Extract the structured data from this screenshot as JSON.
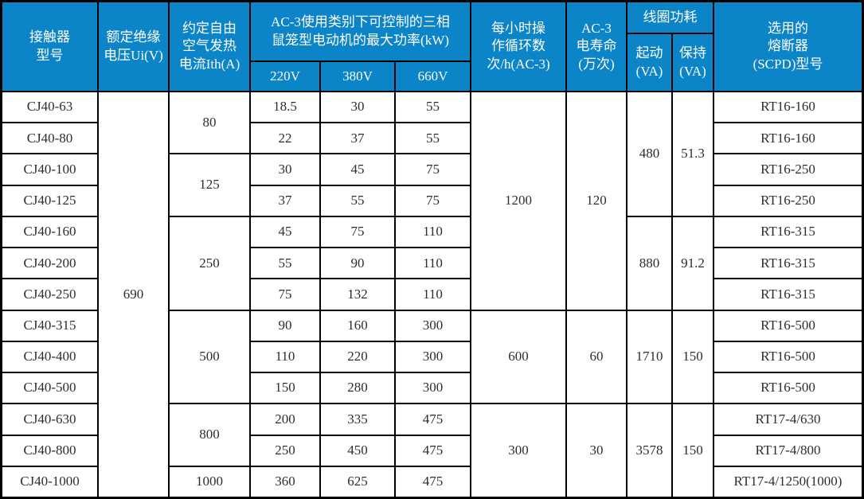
{
  "palette": {
    "header_bg": "#0b84c8",
    "grid_line": "#000000",
    "body_bg": "#ffffff",
    "header_text": "#ffffff",
    "body_text": "#2e2e2e"
  },
  "cells": [
    {
      "n": "header-contactor-model",
      "r": 1,
      "c": 1,
      "rs": 3,
      "h": 1,
      "t": "接触器\n型号"
    },
    {
      "n": "header-rated-insulation-voltage",
      "r": 1,
      "c": 2,
      "rs": 3,
      "h": 1,
      "t": "额定绝缘\n电压Ui(V)"
    },
    {
      "n": "header-conventional-thermal-current",
      "r": 1,
      "c": 3,
      "rs": 3,
      "h": 1,
      "t": "约定自由\n空气发热\n电流Ith(A)"
    },
    {
      "n": "header-ac3-max-power",
      "r": 1,
      "c": 4,
      "rs": 2,
      "cs": 3,
      "h": 1,
      "t": "AC-3使用类别下可控制的三相\n鼠笼型电动机的最大功率(kW)"
    },
    {
      "n": "header-220v",
      "r": 3,
      "c": 4,
      "h": 1,
      "t": "220V"
    },
    {
      "n": "header-380v",
      "r": 3,
      "c": 5,
      "h": 1,
      "t": "380V"
    },
    {
      "n": "header-660v",
      "r": 3,
      "c": 6,
      "h": 1,
      "t": "660V"
    },
    {
      "n": "header-operating-cycles-per-hour",
      "r": 1,
      "c": 7,
      "rs": 3,
      "h": 1,
      "t": "每小时操\n作循环数\n次/h(AC-3)"
    },
    {
      "n": "header-ac3-electrical-life",
      "r": 1,
      "c": 8,
      "rs": 3,
      "h": 1,
      "t": "AC-3\n电寿命\n(万次)"
    },
    {
      "n": "header-coil-power-consumption",
      "r": 1,
      "c": 9,
      "cs": 2,
      "h": 1,
      "t": "线圈功耗"
    },
    {
      "n": "header-coil-starting-va",
      "r": 2,
      "c": 9,
      "rs": 2,
      "h": 1,
      "t": "起动\n(VA)"
    },
    {
      "n": "header-coil-holding-va",
      "r": 2,
      "c": 10,
      "rs": 2,
      "h": 1,
      "t": "保持\n(VA)"
    },
    {
      "n": "header-fuse-scpd-type",
      "r": 1,
      "c": 11,
      "rs": 3,
      "h": 1,
      "t": "选用的\n熔断器\n(SCPD)型号"
    },
    {
      "n": "model-cj40-63",
      "r": 4,
      "c": 1,
      "t": "CJ40-63"
    },
    {
      "n": "model-cj40-80",
      "r": 5,
      "c": 1,
      "t": "CJ40-80"
    },
    {
      "n": "model-cj40-100",
      "r": 6,
      "c": 1,
      "t": "CJ40-100"
    },
    {
      "n": "model-cj40-125",
      "r": 7,
      "c": 1,
      "t": "CJ40-125"
    },
    {
      "n": "model-cj40-160",
      "r": 8,
      "c": 1,
      "t": "CJ40-160"
    },
    {
      "n": "model-cj40-200",
      "r": 9,
      "c": 1,
      "t": "CJ40-200"
    },
    {
      "n": "model-cj40-250",
      "r": 10,
      "c": 1,
      "t": "CJ40-250"
    },
    {
      "n": "model-cj40-315",
      "r": 11,
      "c": 1,
      "t": "CJ40-315"
    },
    {
      "n": "model-cj40-400",
      "r": 12,
      "c": 1,
      "t": "CJ40-400"
    },
    {
      "n": "model-cj40-500",
      "r": 13,
      "c": 1,
      "t": "CJ40-500"
    },
    {
      "n": "model-cj40-630",
      "r": 14,
      "c": 1,
      "t": "CJ40-630"
    },
    {
      "n": "model-cj40-800",
      "r": 15,
      "c": 1,
      "t": "CJ40-800"
    },
    {
      "n": "model-cj40-1000",
      "r": 16,
      "c": 1,
      "t": "CJ40-1000"
    },
    {
      "n": "rated-voltage-690",
      "r": 4,
      "c": 2,
      "rs": 13,
      "t": "690"
    },
    {
      "n": "ith-80",
      "r": 4,
      "c": 3,
      "rs": 2,
      "t": "80"
    },
    {
      "n": "ith-125",
      "r": 6,
      "c": 3,
      "rs": 2,
      "t": "125"
    },
    {
      "n": "ith-250",
      "r": 8,
      "c": 3,
      "rs": 3,
      "t": "250"
    },
    {
      "n": "ith-500",
      "r": 11,
      "c": 3,
      "rs": 3,
      "t": "500"
    },
    {
      "n": "ith-800",
      "r": 14,
      "c": 3,
      "rs": 2,
      "t": "800"
    },
    {
      "n": "ith-1000",
      "r": 16,
      "c": 3,
      "t": "1000"
    },
    {
      "n": "kw220-r1",
      "r": 4,
      "c": 4,
      "t": "18.5"
    },
    {
      "n": "kw220-r2",
      "r": 5,
      "c": 4,
      "t": "22"
    },
    {
      "n": "kw220-r3",
      "r": 6,
      "c": 4,
      "t": "30"
    },
    {
      "n": "kw220-r4",
      "r": 7,
      "c": 4,
      "t": "37"
    },
    {
      "n": "kw220-r5",
      "r": 8,
      "c": 4,
      "t": "45"
    },
    {
      "n": "kw220-r6",
      "r": 9,
      "c": 4,
      "t": "55"
    },
    {
      "n": "kw220-r7",
      "r": 10,
      "c": 4,
      "t": "75"
    },
    {
      "n": "kw220-r8",
      "r": 11,
      "c": 4,
      "t": "90"
    },
    {
      "n": "kw220-r9",
      "r": 12,
      "c": 4,
      "t": "110"
    },
    {
      "n": "kw220-r10",
      "r": 13,
      "c": 4,
      "t": "150"
    },
    {
      "n": "kw220-r11",
      "r": 14,
      "c": 4,
      "t": "200"
    },
    {
      "n": "kw220-r12",
      "r": 15,
      "c": 4,
      "t": "250"
    },
    {
      "n": "kw220-r13",
      "r": 16,
      "c": 4,
      "t": "360"
    },
    {
      "n": "kw380-r1",
      "r": 4,
      "c": 5,
      "t": "30"
    },
    {
      "n": "kw380-r2",
      "r": 5,
      "c": 5,
      "t": "37"
    },
    {
      "n": "kw380-r3",
      "r": 6,
      "c": 5,
      "t": "45"
    },
    {
      "n": "kw380-r4",
      "r": 7,
      "c": 5,
      "t": "55"
    },
    {
      "n": "kw380-r5",
      "r": 8,
      "c": 5,
      "t": "75"
    },
    {
      "n": "kw380-r6",
      "r": 9,
      "c": 5,
      "t": "90"
    },
    {
      "n": "kw380-r7",
      "r": 10,
      "c": 5,
      "t": "132"
    },
    {
      "n": "kw380-r8",
      "r": 11,
      "c": 5,
      "t": "160"
    },
    {
      "n": "kw380-r9",
      "r": 12,
      "c": 5,
      "t": "220"
    },
    {
      "n": "kw380-r10",
      "r": 13,
      "c": 5,
      "t": "280"
    },
    {
      "n": "kw380-r11",
      "r": 14,
      "c": 5,
      "t": "335"
    },
    {
      "n": "kw380-r12",
      "r": 15,
      "c": 5,
      "t": "450"
    },
    {
      "n": "kw380-r13",
      "r": 16,
      "c": 5,
      "t": "625"
    },
    {
      "n": "kw660-r1",
      "r": 4,
      "c": 6,
      "t": "55"
    },
    {
      "n": "kw660-r2",
      "r": 5,
      "c": 6,
      "t": "55"
    },
    {
      "n": "kw660-r3",
      "r": 6,
      "c": 6,
      "t": "75"
    },
    {
      "n": "kw660-r4",
      "r": 7,
      "c": 6,
      "t": "75"
    },
    {
      "n": "kw660-r5",
      "r": 8,
      "c": 6,
      "t": "110"
    },
    {
      "n": "kw660-r6",
      "r": 9,
      "c": 6,
      "t": "110"
    },
    {
      "n": "kw660-r7",
      "r": 10,
      "c": 6,
      "t": "110"
    },
    {
      "n": "kw660-r8",
      "r": 11,
      "c": 6,
      "t": "300"
    },
    {
      "n": "kw660-r9",
      "r": 12,
      "c": 6,
      "t": "300"
    },
    {
      "n": "kw660-r10",
      "r": 13,
      "c": 6,
      "t": "300"
    },
    {
      "n": "kw660-r11",
      "r": 14,
      "c": 6,
      "t": "475"
    },
    {
      "n": "kw660-r12",
      "r": 15,
      "c": 6,
      "t": "475"
    },
    {
      "n": "kw660-r13",
      "r": 16,
      "c": 6,
      "t": "475"
    },
    {
      "n": "cycles-1200",
      "r": 4,
      "c": 7,
      "rs": 7,
      "t": "1200"
    },
    {
      "n": "cycles-600",
      "r": 11,
      "c": 7,
      "rs": 3,
      "t": "600"
    },
    {
      "n": "cycles-300",
      "r": 14,
      "c": 7,
      "rs": 3,
      "t": "300"
    },
    {
      "n": "life-120",
      "r": 4,
      "c": 8,
      "rs": 7,
      "t": "120"
    },
    {
      "n": "life-60",
      "r": 11,
      "c": 8,
      "rs": 3,
      "t": "60"
    },
    {
      "n": "life-30",
      "r": 14,
      "c": 8,
      "rs": 3,
      "t": "30"
    },
    {
      "n": "coil-start-480",
      "r": 4,
      "c": 9,
      "rs": 4,
      "t": "480"
    },
    {
      "n": "coil-start-880",
      "r": 8,
      "c": 9,
      "rs": 3,
      "t": "880"
    },
    {
      "n": "coil-start-1710",
      "r": 11,
      "c": 9,
      "rs": 3,
      "t": "1710"
    },
    {
      "n": "coil-start-3578",
      "r": 14,
      "c": 9,
      "rs": 3,
      "t": "3578"
    },
    {
      "n": "coil-hold-51-3",
      "r": 4,
      "c": 10,
      "rs": 4,
      "t": "51.3"
    },
    {
      "n": "coil-hold-91-2",
      "r": 8,
      "c": 10,
      "rs": 3,
      "t": "91.2"
    },
    {
      "n": "coil-hold-150a",
      "r": 11,
      "c": 10,
      "rs": 3,
      "t": "150"
    },
    {
      "n": "coil-hold-150b",
      "r": 14,
      "c": 10,
      "rs": 3,
      "t": "150"
    },
    {
      "n": "fuse-r1",
      "r": 4,
      "c": 11,
      "t": "RT16-160"
    },
    {
      "n": "fuse-r2",
      "r": 5,
      "c": 11,
      "t": "RT16-160"
    },
    {
      "n": "fuse-r3",
      "r": 6,
      "c": 11,
      "t": "RT16-250"
    },
    {
      "n": "fuse-r4",
      "r": 7,
      "c": 11,
      "t": "RT16-250"
    },
    {
      "n": "fuse-r5",
      "r": 8,
      "c": 11,
      "t": "RT16-315"
    },
    {
      "n": "fuse-r6",
      "r": 9,
      "c": 11,
      "t": "RT16-315"
    },
    {
      "n": "fuse-r7",
      "r": 10,
      "c": 11,
      "t": "RT16-315"
    },
    {
      "n": "fuse-r8",
      "r": 11,
      "c": 11,
      "t": "RT16-500"
    },
    {
      "n": "fuse-r9",
      "r": 12,
      "c": 11,
      "t": "RT16-500"
    },
    {
      "n": "fuse-r10",
      "r": 13,
      "c": 11,
      "t": "RT16-500"
    },
    {
      "n": "fuse-r11",
      "r": 14,
      "c": 11,
      "t": "RT17-4/630"
    },
    {
      "n": "fuse-r12",
      "r": 15,
      "c": 11,
      "t": "RT17-4/800"
    },
    {
      "n": "fuse-r13",
      "r": 16,
      "c": 11,
      "t": "RT17-4/1250(1000)"
    }
  ]
}
